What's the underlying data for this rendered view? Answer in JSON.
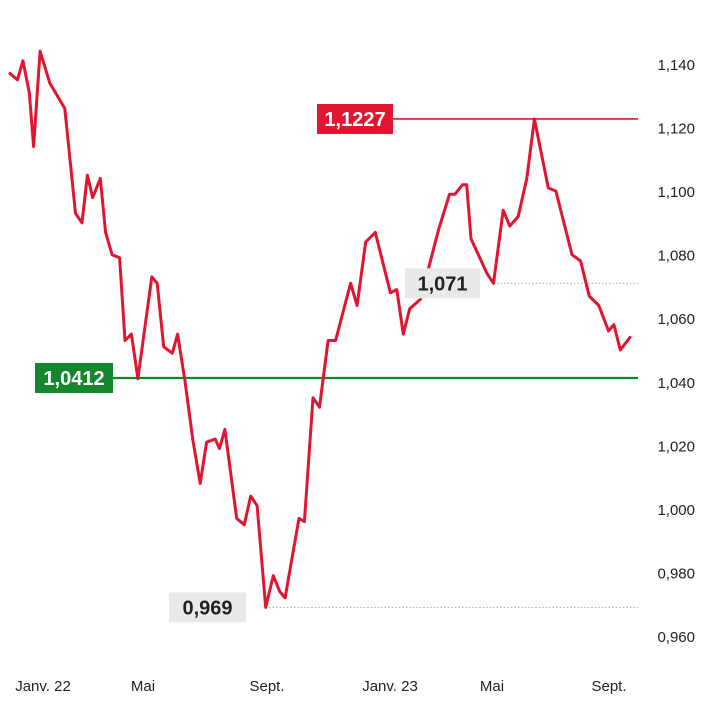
{
  "chart_data": {
    "type": "line",
    "title": "",
    "xlabel": "",
    "ylabel": "",
    "ylim": [
      0.955,
      1.146
    ],
    "y_ticks": [
      "1,140",
      "1,120",
      "1,100",
      "1,080",
      "1,060",
      "1,040",
      "1,020",
      "1,000",
      "0,980",
      "0,960"
    ],
    "y_tick_values": [
      1.14,
      1.12,
      1.1,
      1.08,
      1.06,
      1.04,
      1.02,
      1.0,
      0.98,
      0.96
    ],
    "x_ticks": [
      "Janv. 22",
      "Mai",
      "Sept.",
      "Janv. 23",
      "Mai",
      "Sept."
    ],
    "x_tick_values": [
      "2022-01",
      "2022-05",
      "2022-09",
      "2023-01",
      "2023-05",
      "2023-09"
    ],
    "grid": false,
    "colors": {
      "line": "#e0152f",
      "high": "#e0152f",
      "reference": "#13862e",
      "label_bg": "#e9e9e9",
      "reference_line_dotted": "#aaaaaa"
    },
    "series": [
      {
        "values": [
          [
            "2022-01-01",
            1.137
          ],
          [
            "2022-01-08",
            1.135
          ],
          [
            "2022-01-13",
            1.141
          ],
          [
            "2022-01-19",
            1.131
          ],
          [
            "2022-01-23",
            1.114
          ],
          [
            "2022-01-29",
            1.144
          ],
          [
            "2022-02-07",
            1.134
          ],
          [
            "2022-02-21",
            1.126
          ],
          [
            "2022-03-03",
            1.093
          ],
          [
            "2022-03-09",
            1.09
          ],
          [
            "2022-03-14",
            1.105
          ],
          [
            "2022-03-19",
            1.098
          ],
          [
            "2022-03-26",
            1.104
          ],
          [
            "2022-03-31",
            1.087
          ],
          [
            "2022-04-06",
            1.08
          ],
          [
            "2022-04-13",
            1.079
          ],
          [
            "2022-04-18",
            1.053
          ],
          [
            "2022-04-24",
            1.055
          ],
          [
            "2022-04-30",
            1.041
          ],
          [
            "2022-05-13",
            1.073
          ],
          [
            "2022-05-18",
            1.071
          ],
          [
            "2022-05-24",
            1.051
          ],
          [
            "2022-06-01",
            1.049
          ],
          [
            "2022-06-06",
            1.055
          ],
          [
            "2022-06-13",
            1.04
          ],
          [
            "2022-06-20",
            1.022
          ],
          [
            "2022-06-27",
            1.008
          ],
          [
            "2022-07-03",
            1.021
          ],
          [
            "2022-07-11",
            1.022
          ],
          [
            "2022-07-15",
            1.019
          ],
          [
            "2022-07-20",
            1.025
          ],
          [
            "2022-07-31",
            0.997
          ],
          [
            "2022-08-07",
            0.995
          ],
          [
            "2022-08-13",
            1.004
          ],
          [
            "2022-08-19",
            1.001
          ],
          [
            "2022-08-27",
            0.969
          ],
          [
            "2022-09-03",
            0.979
          ],
          [
            "2022-09-09",
            0.974
          ],
          [
            "2022-09-14",
            0.972
          ],
          [
            "2022-09-27",
            0.997
          ],
          [
            "2022-10-02",
            0.996
          ],
          [
            "2022-10-10",
            1.035
          ],
          [
            "2022-10-16",
            1.032
          ],
          [
            "2022-10-24",
            1.053
          ],
          [
            "2022-10-31",
            1.053
          ],
          [
            "2022-11-07",
            1.062
          ],
          [
            "2022-11-14",
            1.071
          ],
          [
            "2022-11-20",
            1.064
          ],
          [
            "2022-11-28",
            1.084
          ],
          [
            "2022-12-07",
            1.087
          ],
          [
            "2022-12-21",
            1.068
          ],
          [
            "2022-12-27",
            1.069
          ],
          [
            "2023-01-02",
            1.055
          ],
          [
            "2023-01-08",
            1.063
          ],
          [
            "2023-01-18",
            1.066
          ],
          [
            "2023-02-04",
            1.088
          ],
          [
            "2023-02-14",
            1.099
          ],
          [
            "2023-02-19",
            1.099
          ],
          [
            "2023-02-26",
            1.102
          ],
          [
            "2023-03-02",
            1.102
          ],
          [
            "2023-03-06",
            1.085
          ],
          [
            "2023-03-21",
            1.074
          ],
          [
            "2023-03-27",
            1.071
          ],
          [
            "2023-04-05",
            1.094
          ],
          [
            "2023-04-11",
            1.089
          ],
          [
            "2023-04-19",
            1.092
          ],
          [
            "2023-04-27",
            1.104
          ],
          [
            "2023-05-04",
            1.1227
          ],
          [
            "2023-05-17",
            1.101
          ],
          [
            "2023-05-24",
            1.1
          ],
          [
            "2023-06-08",
            1.08
          ],
          [
            "2023-06-16",
            1.078
          ],
          [
            "2023-06-24",
            1.067
          ],
          [
            "2023-07-03",
            1.064
          ],
          [
            "2023-07-12",
            1.056
          ],
          [
            "2023-07-17",
            1.058
          ],
          [
            "2023-07-23",
            1.05
          ],
          [
            "2023-08-01",
            1.054
          ]
        ]
      }
    ],
    "annotations": {
      "high": {
        "value": 1.1227,
        "label": "1,1227"
      },
      "reference": {
        "value": 1.0412,
        "label": "1,0412"
      },
      "mid": {
        "value": 1.071,
        "label": "1,071"
      },
      "low": {
        "value": 0.969,
        "label": "0,969"
      }
    }
  }
}
